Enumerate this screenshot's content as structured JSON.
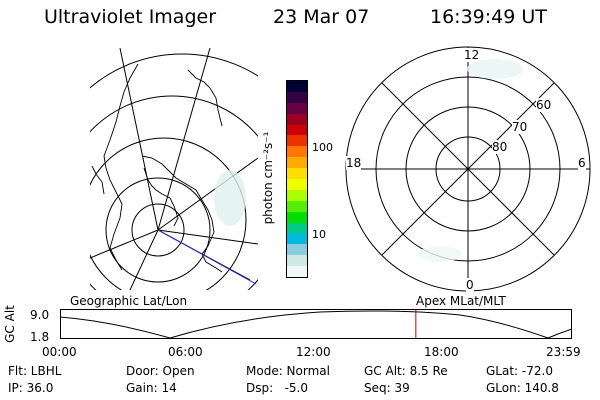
{
  "header": {
    "title": "Ultraviolet Imager",
    "date": "23 Mar 07",
    "time": "16:39:49 UT"
  },
  "geographic_panel": {
    "label": "Geographic Lat/Lon"
  },
  "colorbar": {
    "unit_label": "photon cm⁻²s⁻¹",
    "tick_100": "100",
    "tick_10": "10",
    "colors": [
      "#000033",
      "#330044",
      "#660044",
      "#990022",
      "#cc0000",
      "#ee3300",
      "#ff7700",
      "#ffaa00",
      "#ffdd00",
      "#eeff00",
      "#aaff00",
      "#55ee00",
      "#00dd00",
      "#00cc88",
      "#00bbdd",
      "#88ccdd",
      "#cfe8e4",
      "#f2f8f6"
    ]
  },
  "polar_panel": {
    "label": "Apex MLat/MLT",
    "mlt_12": "12",
    "mlt_18": "18",
    "mlt_6": "6",
    "mlt_0": "0",
    "lat_60": "60",
    "lat_70": "70",
    "lat_80": "80"
  },
  "orbit_plot": {
    "ylabel": "GC Alt",
    "ytick_top": "9.0",
    "ytick_bottom": "1.8",
    "xticks": [
      "00:00",
      "06:00",
      "12:00",
      "18:00",
      "23:59"
    ],
    "marker_time_frac": 0.695
  },
  "info": {
    "flt": "Flt: LBHL",
    "ip": "IP: 36.0",
    "door": "Door: Open",
    "gain": "Gain: 14",
    "mode": "Mode: Normal",
    "dsp": "Dsp:   -5.0",
    "gcalt": "GC Alt: 8.5 Re",
    "seq": "Seq: 39",
    "glat": "GLat: -72.0",
    "glon": "GLon: 140.8"
  }
}
